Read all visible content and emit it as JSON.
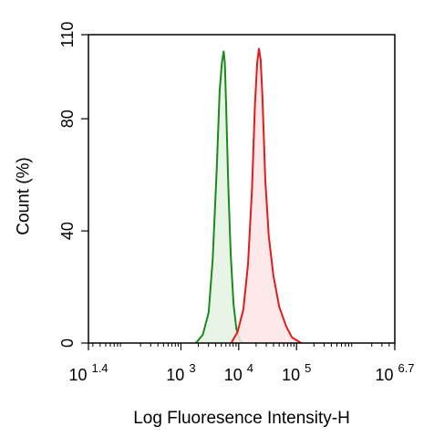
{
  "chart_data": {
    "type": "area",
    "title": "",
    "xlabel": "Log Fluoresence Intensity-H",
    "ylabel": "Count  (%)",
    "x_scale": "log",
    "xlim": [
      1.4,
      6.7
    ],
    "ylim": [
      0,
      110
    ],
    "grid": false,
    "legend": "none",
    "x_ticks": [
      {
        "base": "10",
        "exp": "1.4",
        "value": 1.4
      },
      {
        "base": "10",
        "exp": "3",
        "value": 3
      },
      {
        "base": "10",
        "exp": "4",
        "value": 4
      },
      {
        "base": "10",
        "exp": "5",
        "value": 5
      },
      {
        "base": "10",
        "exp": "6.7",
        "value": 6.7
      }
    ],
    "y_ticks": [
      {
        "label": "0",
        "value": 0
      },
      {
        "label": "40",
        "value": 40
      },
      {
        "label": "80",
        "value": 80
      },
      {
        "label": "110",
        "value": 110
      }
    ],
    "series": [
      {
        "color": "#1a8a1a",
        "fill": "#e4f2e0",
        "x": [
          3.26,
          3.38,
          3.48,
          3.55,
          3.62,
          3.67,
          3.71,
          3.74,
          3.76,
          3.78,
          3.82,
          3.86,
          3.91,
          3.96,
          4.02,
          4.08
        ],
        "y": [
          0,
          3,
          11,
          30,
          62,
          90,
          100,
          104,
          100,
          86,
          56,
          32,
          14,
          5,
          1,
          0
        ]
      },
      {
        "color": "#e21b1b",
        "fill": "#fde4e6",
        "x": [
          3.87,
          3.98,
          4.08,
          4.16,
          4.23,
          4.28,
          4.32,
          4.35,
          4.38,
          4.41,
          4.46,
          4.52,
          4.6,
          4.7,
          4.82,
          4.92,
          5.0,
          5.08
        ],
        "y": [
          0,
          4,
          12,
          28,
          55,
          85,
          100,
          105,
          101,
          88,
          58,
          38,
          24,
          13,
          6,
          2,
          1,
          0
        ]
      }
    ]
  }
}
